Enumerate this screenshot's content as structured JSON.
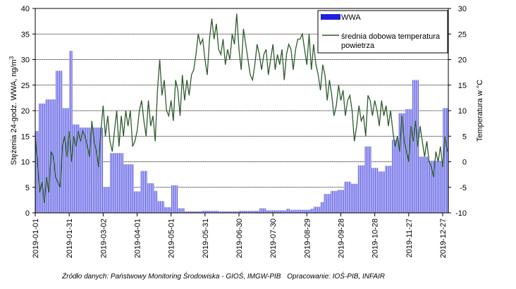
{
  "chart_data": {
    "type": "bar+line",
    "x_labels": [
      "2019-01-01",
      "2019-01-31",
      "2019-03-02",
      "2019-04-01",
      "2019-05-01",
      "2019-05-31",
      "2019-06-30",
      "2019-07-30",
      "2019-08-29",
      "2019-09-28",
      "2019-10-28",
      "2019-11-27",
      "2019-12-27"
    ],
    "x_day_index": [
      0,
      30,
      60,
      90,
      120,
      150,
      180,
      210,
      240,
      270,
      300,
      330,
      360
    ],
    "n_days": 365,
    "left_axis": {
      "label": "Stężenia 24-godz. WWA, ng/m",
      "label_superscript": "3",
      "min": 0,
      "max": 40,
      "ticks": [
        0,
        5,
        10,
        15,
        20,
        25,
        30,
        35,
        40
      ]
    },
    "right_axis": {
      "label": "Temperatura w °C",
      "min": -10,
      "max": 30,
      "ticks": [
        -10,
        -5,
        0,
        5,
        10,
        15,
        20,
        25,
        30
      ]
    },
    "grid": true,
    "legend_position": "top-right",
    "bar_series": {
      "name": "WWA",
      "color": "#6060e6",
      "segments": [
        {
          "start": 0,
          "end": 3,
          "value": 16
        },
        {
          "start": 3,
          "end": 6,
          "value": 21.4
        },
        {
          "start": 6,
          "end": 9,
          "value": 21.4
        },
        {
          "start": 9,
          "end": 12,
          "value": 22.2
        },
        {
          "start": 12,
          "end": 15,
          "value": 22.2
        },
        {
          "start": 15,
          "end": 18,
          "value": 22.2
        },
        {
          "start": 18,
          "end": 21,
          "value": 27.8
        },
        {
          "start": 21,
          "end": 24,
          "value": 27.8
        },
        {
          "start": 24,
          "end": 27,
          "value": 20.5
        },
        {
          "start": 27,
          "end": 30,
          "value": 20.5
        },
        {
          "start": 30,
          "end": 33,
          "value": 31.7
        },
        {
          "start": 33,
          "end": 36,
          "value": 17.3
        },
        {
          "start": 36,
          "end": 39,
          "value": 17.3
        },
        {
          "start": 39,
          "end": 42,
          "value": 16.7
        },
        {
          "start": 42,
          "end": 45,
          "value": 16.7
        },
        {
          "start": 45,
          "end": 48,
          "value": 16.7
        },
        {
          "start": 48,
          "end": 51,
          "value": 16.7
        },
        {
          "start": 51,
          "end": 54,
          "value": 16.7
        },
        {
          "start": 54,
          "end": 57,
          "value": 16.7
        },
        {
          "start": 57,
          "end": 60,
          "value": 16.7
        },
        {
          "start": 60,
          "end": 63,
          "value": 5
        },
        {
          "start": 63,
          "end": 66,
          "value": 5
        },
        {
          "start": 66,
          "end": 69,
          "value": 11.7
        },
        {
          "start": 69,
          "end": 72,
          "value": 11.7
        },
        {
          "start": 72,
          "end": 75,
          "value": 11.7
        },
        {
          "start": 75,
          "end": 78,
          "value": 11.7
        },
        {
          "start": 78,
          "end": 81,
          "value": 9.5
        },
        {
          "start": 81,
          "end": 84,
          "value": 9.5
        },
        {
          "start": 84,
          "end": 87,
          "value": 9.5
        },
        {
          "start": 87,
          "end": 90,
          "value": 4.2
        },
        {
          "start": 90,
          "end": 93,
          "value": 4.2
        },
        {
          "start": 93,
          "end": 96,
          "value": 8.2
        },
        {
          "start": 96,
          "end": 99,
          "value": 8.2
        },
        {
          "start": 99,
          "end": 102,
          "value": 5.8
        },
        {
          "start": 102,
          "end": 105,
          "value": 5.8
        },
        {
          "start": 105,
          "end": 108,
          "value": 4.3
        },
        {
          "start": 108,
          "end": 111,
          "value": 2.3
        },
        {
          "start": 111,
          "end": 114,
          "value": 2.3
        },
        {
          "start": 114,
          "end": 117,
          "value": 1.1
        },
        {
          "start": 117,
          "end": 120,
          "value": 1.1
        },
        {
          "start": 120,
          "end": 123,
          "value": 5.4
        },
        {
          "start": 123,
          "end": 126,
          "value": 5.4
        },
        {
          "start": 126,
          "end": 129,
          "value": 0.9
        },
        {
          "start": 129,
          "end": 132,
          "value": 0.9
        },
        {
          "start": 132,
          "end": 147,
          "value": 0.3
        },
        {
          "start": 147,
          "end": 162,
          "value": 0.4
        },
        {
          "start": 162,
          "end": 180,
          "value": 0.3
        },
        {
          "start": 180,
          "end": 198,
          "value": 0.4
        },
        {
          "start": 198,
          "end": 201,
          "value": 0.9
        },
        {
          "start": 201,
          "end": 204,
          "value": 0.9
        },
        {
          "start": 204,
          "end": 222,
          "value": 0.5
        },
        {
          "start": 222,
          "end": 225,
          "value": 0.8
        },
        {
          "start": 225,
          "end": 243,
          "value": 0.6
        },
        {
          "start": 243,
          "end": 246,
          "value": 0.8
        },
        {
          "start": 246,
          "end": 252,
          "value": 1.2
        },
        {
          "start": 252,
          "end": 255,
          "value": 2.1
        },
        {
          "start": 255,
          "end": 258,
          "value": 3.7
        },
        {
          "start": 258,
          "end": 261,
          "value": 3.7
        },
        {
          "start": 261,
          "end": 264,
          "value": 4.3
        },
        {
          "start": 264,
          "end": 267,
          "value": 4.3
        },
        {
          "start": 267,
          "end": 270,
          "value": 4.5
        },
        {
          "start": 270,
          "end": 273,
          "value": 4.5
        },
        {
          "start": 273,
          "end": 276,
          "value": 6.1
        },
        {
          "start": 276,
          "end": 279,
          "value": 6.1
        },
        {
          "start": 279,
          "end": 282,
          "value": 5.7
        },
        {
          "start": 282,
          "end": 285,
          "value": 5.7
        },
        {
          "start": 285,
          "end": 288,
          "value": 9.3
        },
        {
          "start": 288,
          "end": 291,
          "value": 9.3
        },
        {
          "start": 291,
          "end": 294,
          "value": 13
        },
        {
          "start": 294,
          "end": 297,
          "value": 13
        },
        {
          "start": 297,
          "end": 300,
          "value": 8.8
        },
        {
          "start": 300,
          "end": 303,
          "value": 8.8
        },
        {
          "start": 303,
          "end": 306,
          "value": 8.1
        },
        {
          "start": 306,
          "end": 309,
          "value": 8.1
        },
        {
          "start": 309,
          "end": 312,
          "value": 9.2
        },
        {
          "start": 312,
          "end": 315,
          "value": 9.2
        },
        {
          "start": 315,
          "end": 318,
          "value": 14.3
        },
        {
          "start": 318,
          "end": 321,
          "value": 14.3
        },
        {
          "start": 321,
          "end": 324,
          "value": 19.5
        },
        {
          "start": 324,
          "end": 327,
          "value": 19.5
        },
        {
          "start": 327,
          "end": 330,
          "value": 20.3
        },
        {
          "start": 330,
          "end": 333,
          "value": 20.3
        },
        {
          "start": 333,
          "end": 336,
          "value": 26
        },
        {
          "start": 336,
          "end": 339,
          "value": 26
        },
        {
          "start": 339,
          "end": 342,
          "value": 11
        },
        {
          "start": 342,
          "end": 345,
          "value": 11
        },
        {
          "start": 345,
          "end": 348,
          "value": 11
        },
        {
          "start": 348,
          "end": 351,
          "value": 10.2
        },
        {
          "start": 351,
          "end": 354,
          "value": 10.2
        },
        {
          "start": 354,
          "end": 357,
          "value": 10.2
        },
        {
          "start": 357,
          "end": 360,
          "value": 10.2
        },
        {
          "start": 360,
          "end": 365,
          "value": 20.5
        }
      ]
    },
    "line_series": {
      "name": "średnia dobowa temperatura powietrza",
      "color": "#2e5a2e",
      "points": [
        [
          0,
          5
        ],
        [
          2,
          0
        ],
        [
          4,
          -6
        ],
        [
          6,
          -4
        ],
        [
          8,
          -8
        ],
        [
          10,
          -3
        ],
        [
          12,
          -6
        ],
        [
          14,
          2
        ],
        [
          16,
          1
        ],
        [
          18,
          -3
        ],
        [
          20,
          -4
        ],
        [
          22,
          -5
        ],
        [
          24,
          3
        ],
        [
          26,
          5
        ],
        [
          28,
          1
        ],
        [
          30,
          6
        ],
        [
          32,
          0
        ],
        [
          34,
          5
        ],
        [
          36,
          3
        ],
        [
          38,
          6
        ],
        [
          40,
          4
        ],
        [
          42,
          6
        ],
        [
          44,
          5
        ],
        [
          46,
          3
        ],
        [
          48,
          1
        ],
        [
          50,
          8
        ],
        [
          52,
          4
        ],
        [
          54,
          2
        ],
        [
          56,
          -1
        ],
        [
          58,
          6
        ],
        [
          60,
          11
        ],
        [
          62,
          5
        ],
        [
          64,
          9
        ],
        [
          66,
          4
        ],
        [
          68,
          2
        ],
        [
          70,
          6
        ],
        [
          72,
          10
        ],
        [
          74,
          3
        ],
        [
          76,
          9
        ],
        [
          78,
          5
        ],
        [
          80,
          10
        ],
        [
          82,
          7
        ],
        [
          84,
          10
        ],
        [
          86,
          3
        ],
        [
          88,
          4
        ],
        [
          90,
          6
        ],
        [
          92,
          10
        ],
        [
          94,
          12
        ],
        [
          96,
          8
        ],
        [
          98,
          5
        ],
        [
          100,
          12
        ],
        [
          102,
          7
        ],
        [
          104,
          9
        ],
        [
          106,
          4
        ],
        [
          108,
          14
        ],
        [
          110,
          20
        ],
        [
          112,
          13
        ],
        [
          114,
          16
        ],
        [
          116,
          10
        ],
        [
          118,
          9
        ],
        [
          120,
          12
        ],
        [
          122,
          8
        ],
        [
          124,
          16
        ],
        [
          126,
          14
        ],
        [
          128,
          9
        ],
        [
          130,
          17
        ],
        [
          132,
          12
        ],
        [
          134,
          16
        ],
        [
          136,
          13
        ],
        [
          138,
          17
        ],
        [
          140,
          18
        ],
        [
          142,
          21
        ],
        [
          144,
          25
        ],
        [
          146,
          23
        ],
        [
          148,
          24
        ],
        [
          150,
          20
        ],
        [
          152,
          17
        ],
        [
          154,
          24
        ],
        [
          156,
          28
        ],
        [
          158,
          24
        ],
        [
          160,
          27
        ],
        [
          162,
          22
        ],
        [
          164,
          21
        ],
        [
          166,
          24
        ],
        [
          168,
          19
        ],
        [
          170,
          22
        ],
        [
          172,
          20
        ],
        [
          174,
          25
        ],
        [
          176,
          23
        ],
        [
          178,
          29
        ],
        [
          180,
          22
        ],
        [
          182,
          18
        ],
        [
          184,
          26
        ],
        [
          186,
          23
        ],
        [
          188,
          20
        ],
        [
          190,
          17
        ],
        [
          192,
          16
        ],
        [
          194,
          19
        ],
        [
          196,
          23
        ],
        [
          198,
          21
        ],
        [
          200,
          18
        ],
        [
          202,
          21
        ],
        [
          204,
          22
        ],
        [
          206,
          17
        ],
        [
          208,
          20
        ],
        [
          210,
          23
        ],
        [
          212,
          18
        ],
        [
          214,
          21
        ],
        [
          216,
          19
        ],
        [
          218,
          22
        ],
        [
          220,
          16
        ],
        [
          222,
          21
        ],
        [
          224,
          23
        ],
        [
          226,
          22
        ],
        [
          228,
          18
        ],
        [
          230,
          22
        ],
        [
          232,
          24
        ],
        [
          234,
          24
        ],
        [
          236,
          25
        ],
        [
          238,
          22
        ],
        [
          240,
          19
        ],
        [
          242,
          25
        ],
        [
          244,
          18
        ],
        [
          246,
          23
        ],
        [
          248,
          19
        ],
        [
          250,
          17
        ],
        [
          252,
          14
        ],
        [
          254,
          19
        ],
        [
          256,
          17
        ],
        [
          258,
          12
        ],
        [
          260,
          16
        ],
        [
          262,
          13
        ],
        [
          264,
          9
        ],
        [
          266,
          11
        ],
        [
          268,
          15
        ],
        [
          270,
          12
        ],
        [
          272,
          14
        ],
        [
          274,
          9
        ],
        [
          276,
          12
        ],
        [
          278,
          13
        ],
        [
          280,
          10
        ],
        [
          282,
          4
        ],
        [
          284,
          7
        ],
        [
          286,
          11
        ],
        [
          288,
          8
        ],
        [
          290,
          9
        ],
        [
          292,
          5
        ],
        [
          294,
          13
        ],
        [
          296,
          12
        ],
        [
          298,
          9
        ],
        [
          300,
          12
        ],
        [
          302,
          10
        ],
        [
          304,
          7
        ],
        [
          306,
          12
        ],
        [
          308,
          9
        ],
        [
          310,
          11
        ],
        [
          312,
          7
        ],
        [
          314,
          10
        ],
        [
          316,
          6
        ],
        [
          318,
          3
        ],
        [
          320,
          5
        ],
        [
          322,
          2
        ],
        [
          324,
          9
        ],
        [
          326,
          4
        ],
        [
          328,
          2
        ],
        [
          330,
          0
        ],
        [
          332,
          7
        ],
        [
          334,
          4
        ],
        [
          336,
          8
        ],
        [
          338,
          3
        ],
        [
          340,
          7
        ],
        [
          342,
          4
        ],
        [
          344,
          1
        ],
        [
          346,
          4
        ],
        [
          348,
          0
        ],
        [
          350,
          -1
        ],
        [
          352,
          -3
        ],
        [
          354,
          2
        ],
        [
          356,
          0
        ],
        [
          358,
          3
        ],
        [
          360,
          -1
        ],
        [
          362,
          5
        ],
        [
          364,
          2
        ]
      ]
    }
  },
  "legend": {
    "bar_label": "WWA",
    "line_label_line1": "średnia dobowa temperatura",
    "line_label_line2": "powietrza"
  },
  "source_note": {
    "left": "Źródło danych: Państwowy Monitoring Środowiska  - GIOŚ, IMGW-PIB",
    "right": "Opracowanie: IOŚ-PIB, INFAIR"
  }
}
